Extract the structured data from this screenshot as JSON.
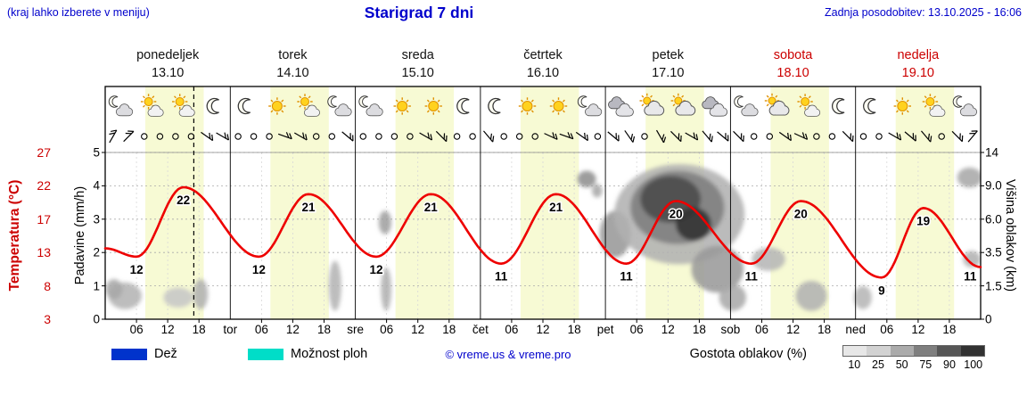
{
  "header": {
    "hint": "(kraj lahko izberete v meniju)",
    "title": "Starigrad 7 dni",
    "updated": "Zadnja posodobitev: 13.10.2025 - 16:06"
  },
  "days": [
    {
      "name": "ponedeljek",
      "date": "13.10",
      "weekend": false,
      "icons": [
        "cloud-moon",
        "sun-cloud",
        "sun-cloud",
        "moon"
      ]
    },
    {
      "name": "torek",
      "date": "14.10",
      "weekend": false,
      "icons": [
        "moon",
        "sun",
        "sun-cloud",
        "cloud-moon"
      ]
    },
    {
      "name": "sreda",
      "date": "15.10",
      "weekend": false,
      "icons": [
        "cloud-moon",
        "sun",
        "sun",
        "moon"
      ]
    },
    {
      "name": "četrtek",
      "date": "16.10",
      "weekend": false,
      "icons": [
        "moon",
        "sun",
        "sun",
        "cloud-moon"
      ]
    },
    {
      "name": "petek",
      "date": "17.10",
      "weekend": false,
      "icons": [
        "clouds",
        "cloud-sun",
        "cloud-sun",
        "clouds"
      ]
    },
    {
      "name": "sobota",
      "date": "18.10",
      "weekend": true,
      "icons": [
        "cloud-moon",
        "cloud-sun",
        "sun-cloud",
        "moon"
      ]
    },
    {
      "name": "nedelja",
      "date": "19.10",
      "weekend": true,
      "icons": [
        "moon",
        "sun",
        "sun-cloud",
        "cloud-moon"
      ]
    }
  ],
  "axes": {
    "temp_label": "Temperatura (°C)",
    "temp_ticks": [
      "27",
      "22",
      "17",
      "13",
      "8",
      "3"
    ],
    "precip_label": "Padavine (mm/h)",
    "precip_ticks": [
      "5",
      "4",
      "3",
      "2",
      "1",
      "0"
    ],
    "cloud_label": "Višina oblakov (km)",
    "cloud_ticks": [
      "14",
      "9.0",
      "6.0",
      "3.5",
      "1.5",
      "0"
    ],
    "hour_labels": [
      "06",
      "12",
      "18"
    ],
    "day_abbr": [
      "tor",
      "sre",
      "čet",
      "pet",
      "sob",
      "ned"
    ]
  },
  "legend": {
    "rain": "Dež",
    "showers": "Možnost ploh",
    "copyright": "© vreme.us & vreme.pro",
    "cloud_density": "Gostota oblakov (%)",
    "density_ticks": [
      "10",
      "25",
      "50",
      "75",
      "90",
      "100"
    ],
    "density_colors": [
      "#e7e7e7",
      "#d2d2d2",
      "#ababab",
      "#7f7f7f",
      "#565656",
      "#323232"
    ]
  },
  "colors": {
    "accent_blue": "#0000cc",
    "weekend_red": "#cc0000",
    "curve_red": "#ee0000",
    "day_band": "#f7fad4",
    "rain_blue": "#0033cc",
    "showers_cyan": "#00ddc8"
  },
  "chart_data": {
    "type": "line",
    "title": "Starigrad 7 dni",
    "x_axis": {
      "unit": "hours from 13.10 00:00",
      "hours_total": 168,
      "hour_ticks": [
        6,
        12,
        18
      ]
    },
    "daylight": {
      "start_h": 7.7,
      "end_h": 18.9
    },
    "now_line_h": 17,
    "temperature": {
      "axis_range": [
        3,
        27
      ],
      "control_points": [
        [
          0,
          13.2
        ],
        [
          6,
          12
        ],
        [
          15,
          22
        ],
        [
          29.5,
          12
        ],
        [
          39,
          21
        ],
        [
          52,
          12
        ],
        [
          62.5,
          21
        ],
        [
          76,
          11
        ],
        [
          86.5,
          21
        ],
        [
          100,
          11
        ],
        [
          109.5,
          20
        ],
        [
          124,
          11
        ],
        [
          133.5,
          20
        ],
        [
          149,
          9
        ],
        [
          157,
          19
        ],
        [
          168,
          10.5
        ]
      ],
      "point_labels": [
        {
          "t": 6,
          "v": 12
        },
        {
          "t": 15,
          "v": 22
        },
        {
          "t": 29.5,
          "v": 12
        },
        {
          "t": 39,
          "v": 21
        },
        {
          "t": 52,
          "v": 12
        },
        {
          "t": 62.5,
          "v": 21
        },
        {
          "t": 76,
          "v": 11
        },
        {
          "t": 86.5,
          "v": 21
        },
        {
          "t": 100,
          "v": 11
        },
        {
          "t": 109.5,
          "v": 20
        },
        {
          "t": 124,
          "v": 11
        },
        {
          "t": 133.5,
          "v": 20
        },
        {
          "t": 149,
          "v": 9
        },
        {
          "t": 157,
          "v": 19
        },
        {
          "t": 166,
          "v": 11
        }
      ]
    },
    "precip_axis_range_mmh": [
      0,
      5
    ],
    "cloud_height_axis_km": [
      "0",
      "1.5",
      "3.5",
      "6.0",
      "9.0",
      "14"
    ],
    "clouds": [
      {
        "t": 3.8,
        "yf": 0.86,
        "rt": 3.2,
        "ryf": 0.08,
        "c": "#b4b4b4"
      },
      {
        "t": 1.7,
        "yf": 0.82,
        "rt": 1.6,
        "ryf": 0.06,
        "c": "#a8a8a8"
      },
      {
        "t": 14.0,
        "yf": 0.87,
        "rt": 2.8,
        "ryf": 0.06,
        "c": "#c6c6c6"
      },
      {
        "t": 18.3,
        "yf": 0.85,
        "rt": 1.4,
        "ryf": 0.09,
        "c": "#b0b0b0"
      },
      {
        "t": 44.1,
        "yf": 0.8,
        "rt": 1.2,
        "ryf": 0.15,
        "c": "#b4b4b4"
      },
      {
        "t": 53.7,
        "yf": 0.42,
        "rt": 1.2,
        "ryf": 0.07,
        "c": "#a0a0a0"
      },
      {
        "t": 53.9,
        "yf": 0.82,
        "rt": 1.0,
        "ryf": 0.13,
        "c": "#b0b0b0"
      },
      {
        "t": 92.4,
        "yf": 0.16,
        "rt": 1.8,
        "ryf": 0.05,
        "c": "#909090"
      },
      {
        "t": 94.4,
        "yf": 0.23,
        "rt": 1.0,
        "ryf": 0.04,
        "c": "#a8a8a8"
      },
      {
        "t": 97.9,
        "yf": 0.49,
        "rt": 3.0,
        "ryf": 0.14,
        "c": "#989898"
      },
      {
        "t": 110.2,
        "yf": 0.37,
        "rt": 12.5,
        "ryf": 0.3,
        "c": "#b2b2b2"
      },
      {
        "t": 109.8,
        "yf": 0.33,
        "rt": 9.0,
        "ryf": 0.22,
        "c": "#7e7e7e"
      },
      {
        "t": 108.5,
        "yf": 0.28,
        "rt": 5.8,
        "ryf": 0.14,
        "c": "#4a4a4a"
      },
      {
        "t": 112.9,
        "yf": 0.43,
        "rt": 3.4,
        "ryf": 0.1,
        "c": "#303030"
      },
      {
        "t": 117.5,
        "yf": 0.7,
        "rt": 5.0,
        "ryf": 0.14,
        "c": "#9a9a9a"
      },
      {
        "t": 120.4,
        "yf": 0.87,
        "rt": 2.6,
        "ryf": 0.08,
        "c": "#aaaaaa"
      },
      {
        "t": 127.3,
        "yf": 0.64,
        "rt": 3.2,
        "ryf": 0.07,
        "c": "#b6b6b6"
      },
      {
        "t": 135.5,
        "yf": 0.86,
        "rt": 3.0,
        "ryf": 0.09,
        "c": "#b2b2b2"
      },
      {
        "t": 145.4,
        "yf": 0.87,
        "rt": 1.7,
        "ryf": 0.07,
        "c": "#b6b6b6"
      },
      {
        "t": 165.9,
        "yf": 0.15,
        "rt": 2.4,
        "ryf": 0.06,
        "c": "#a8a8a8"
      },
      {
        "t": 166.3,
        "yf": 0.64,
        "rt": 1.7,
        "ryf": 0.05,
        "c": "#b2b2b2"
      }
    ],
    "wind": [
      {
        "s": "b",
        "r": -60
      },
      {
        "s": "b",
        "r": -45
      },
      {
        "s": "c"
      },
      {
        "s": "c"
      },
      {
        "s": "c"
      },
      {
        "s": "c"
      },
      {
        "s": "b",
        "r": 35
      },
      {
        "s": "b",
        "r": 30
      },
      {
        "s": "c"
      },
      {
        "s": "c"
      },
      {
        "s": "c"
      },
      {
        "s": "b",
        "r": 20
      },
      {
        "s": "b",
        "r": 30
      },
      {
        "s": "c"
      },
      {
        "s": "c"
      },
      {
        "s": "b",
        "r": 40
      },
      {
        "s": "c"
      },
      {
        "s": "c"
      },
      {
        "s": "c"
      },
      {
        "s": "c"
      },
      {
        "s": "b",
        "r": 30
      },
      {
        "s": "b",
        "r": 45
      },
      {
        "s": "c"
      },
      {
        "s": "c"
      },
      {
        "s": "b",
        "r": 50
      },
      {
        "s": "c"
      },
      {
        "s": "c"
      },
      {
        "s": "c"
      },
      {
        "s": "b",
        "r": 25
      },
      {
        "s": "b",
        "r": 20
      },
      {
        "s": "b",
        "r": 35
      },
      {
        "s": "c"
      },
      {
        "s": "b",
        "r": 40
      },
      {
        "s": "b",
        "r": 55
      },
      {
        "s": "c"
      },
      {
        "s": "b",
        "r": 60
      },
      {
        "s": "b",
        "r": 45
      },
      {
        "s": "b",
        "r": 30
      },
      {
        "s": "b",
        "r": 50
      },
      {
        "s": "b",
        "r": 40
      },
      {
        "s": "b",
        "r": 45
      },
      {
        "s": "c"
      },
      {
        "s": "c"
      },
      {
        "s": "b",
        "r": 35
      },
      {
        "s": "b",
        "r": 25
      },
      {
        "s": "c"
      },
      {
        "s": "c"
      },
      {
        "s": "b",
        "r": 45
      },
      {
        "s": "c"
      },
      {
        "s": "c"
      },
      {
        "s": "b",
        "r": 30
      },
      {
        "s": "b",
        "r": 40
      },
      {
        "s": "b",
        "r": 50
      },
      {
        "s": "c"
      },
      {
        "s": "b",
        "r": 45
      },
      {
        "s": "b",
        "r": -50
      }
    ]
  }
}
